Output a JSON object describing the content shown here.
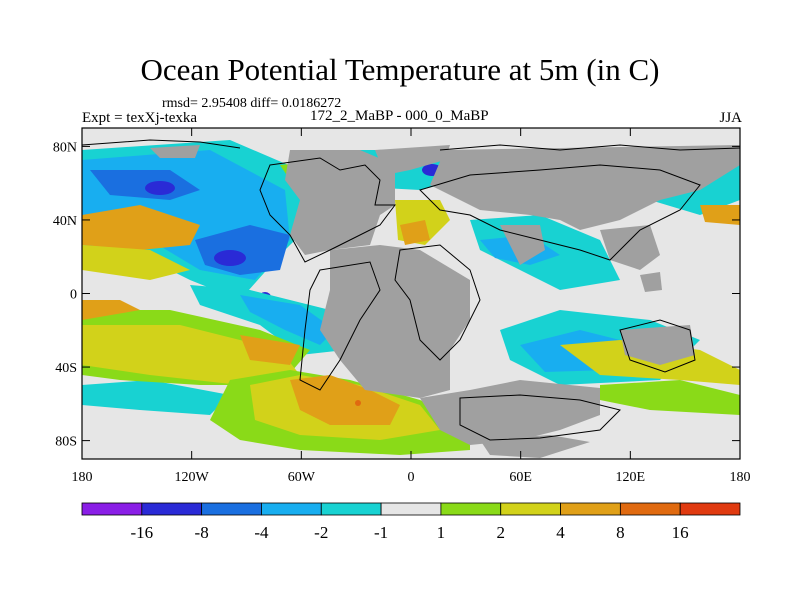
{
  "chart_data": {
    "type": "heatmap",
    "title": "Ocean Potential Temperature at 5m (in C)",
    "stats_text": "rmsd= 2.95408 diff= 0.0186272",
    "left_label": "Expt = texXj-texka",
    "center_label": "172_2_MaBP - 000_0_MaBP",
    "right_label": "JJA",
    "x_ticks": [
      "180",
      "120W",
      "60W",
      "0",
      "60E",
      "120E",
      "180"
    ],
    "y_ticks": [
      "80N",
      "40N",
      "0",
      "40S",
      "80S"
    ],
    "x_range": [
      -180,
      180
    ],
    "y_range": [
      -90,
      90
    ],
    "colorbar": {
      "labels": [
        "-16",
        "-8",
        "-4",
        "-2",
        "-1",
        "1",
        "2",
        "4",
        "8",
        "16"
      ],
      "colors": [
        "#8a1ee6",
        "#2a2ad6",
        "#1a6fe0",
        "#18aef0",
        "#18d2d2",
        "#e6e6e6",
        "#8ada18",
        "#d2d21a",
        "#e0a018",
        "#e06a10",
        "#e03a10"
      ]
    },
    "land_color": "#a0a0a0",
    "missing_color": "#e8e8e8"
  }
}
